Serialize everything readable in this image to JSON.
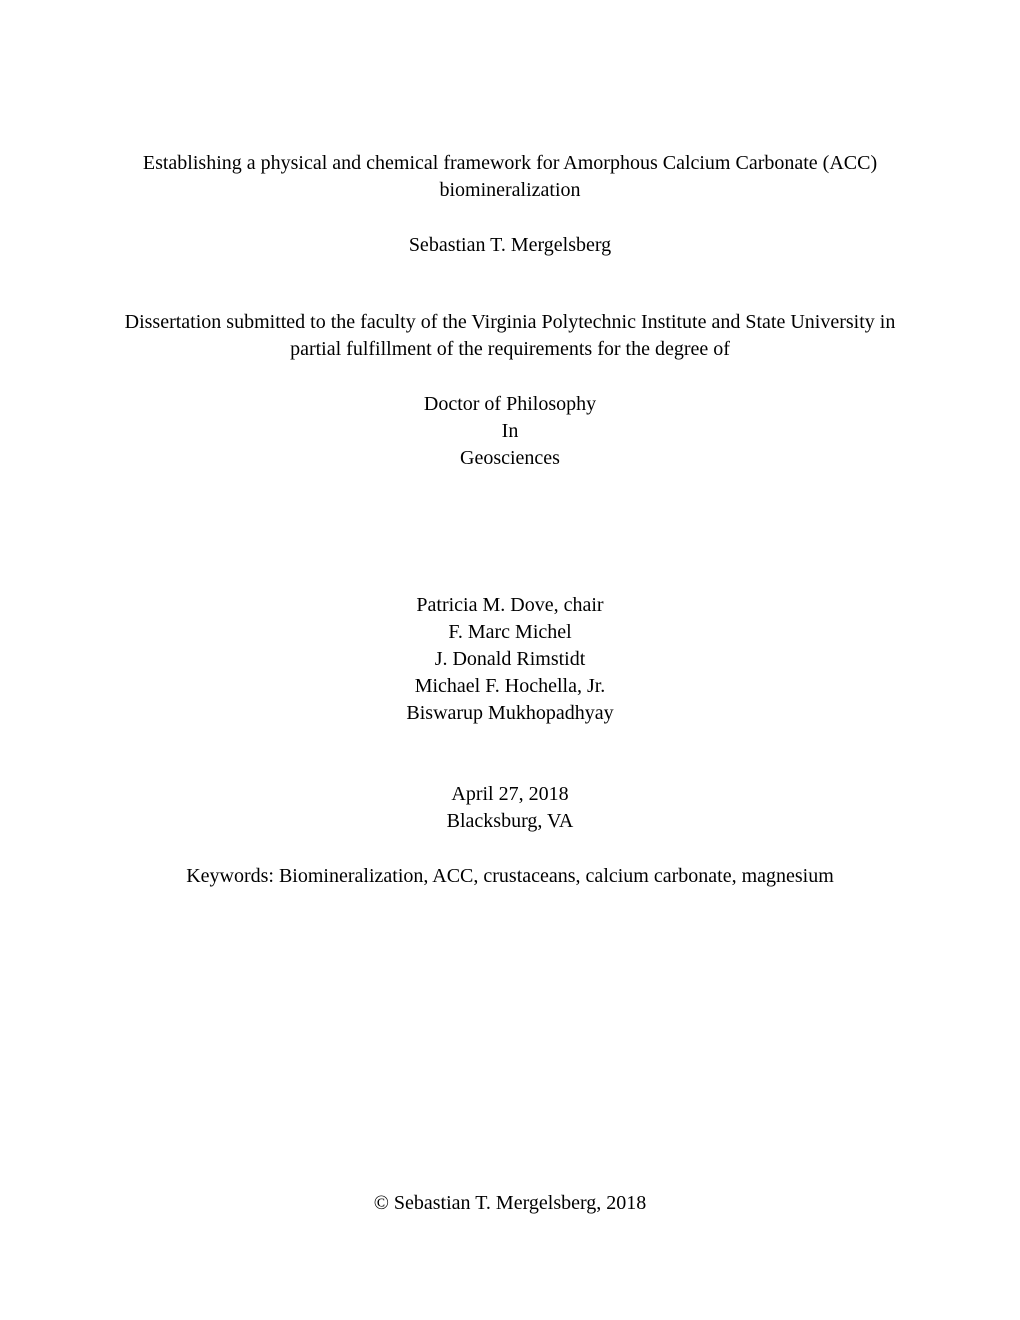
{
  "title": {
    "line1": "Establishing a physical and chemical framework for Amorphous Calcium Carbonate (ACC)",
    "line2": "biomineralization"
  },
  "author": "Sebastian T. Mergelsberg",
  "submission": {
    "line1": "Dissertation submitted to the faculty of the Virginia Polytechnic Institute and State University in",
    "line2": "partial fulfillment of the requirements for the degree of"
  },
  "degree": {
    "line1": "Doctor of Philosophy",
    "line2": "In",
    "line3": "Geosciences"
  },
  "committee": [
    "Patricia M. Dove, chair",
    "F. Marc Michel",
    "J. Donald Rimstidt",
    "Michael F. Hochella, Jr.",
    "Biswarup Mukhopadhyay"
  ],
  "date": "April 27, 2018",
  "location": "Blacksburg, VA",
  "keywords": "Keywords: Biomineralization, ACC, crustaceans, calcium carbonate, magnesium",
  "copyright": "© Sebastian T. Mergelsberg, 2018"
}
